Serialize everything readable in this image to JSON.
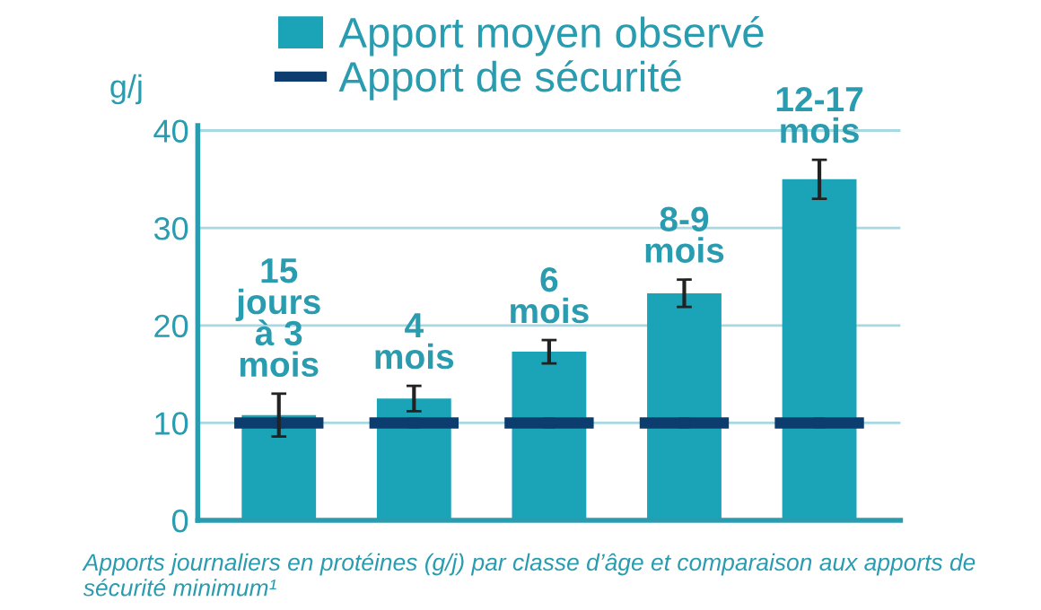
{
  "chart_data": {
    "type": "bar",
    "categories": [
      "15\njours\nà 3\nmois",
      "4\nmois",
      "6\nmois",
      "8-9\nmois",
      "12-17\nmois"
    ],
    "series": [
      {
        "name": "Apport moyen observé",
        "color": "#1ba3b8",
        "values": [
          10.8,
          12.5,
          17.3,
          23.3,
          35
        ],
        "errors": [
          2.2,
          1.3,
          1.2,
          1.4,
          2
        ]
      },
      {
        "name": "Apport de sécurité",
        "type": "scatter",
        "color": "#0d3d6e",
        "values": [
          10,
          10,
          10,
          10,
          10
        ]
      }
    ],
    "ylabel": "g/j",
    "ylim": [
      0,
      40.5
    ],
    "yticks": [
      0,
      10,
      20,
      30,
      40
    ],
    "grid": "y",
    "legend": "top",
    "tick_labels": "y",
    "annotations": [
      "Apports journaliers en protéines (g/j) par classe d’âge et comparaison aux apports de sécurité minimum¹"
    ]
  }
}
